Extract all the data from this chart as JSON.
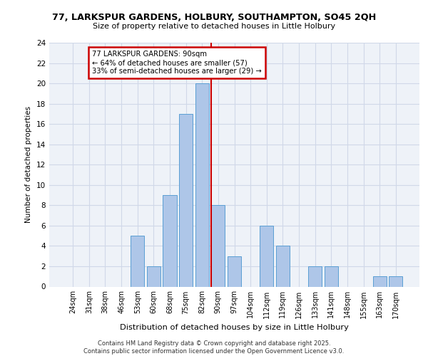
{
  "title1": "77, LARKSPUR GARDENS, HOLBURY, SOUTHAMPTON, SO45 2QH",
  "title2": "Size of property relative to detached houses in Little Holbury",
  "xlabel": "Distribution of detached houses by size in Little Holbury",
  "ylabel": "Number of detached properties",
  "categories": [
    "24sqm",
    "31sqm",
    "38sqm",
    "46sqm",
    "53sqm",
    "60sqm",
    "68sqm",
    "75sqm",
    "82sqm",
    "90sqm",
    "97sqm",
    "104sqm",
    "112sqm",
    "119sqm",
    "126sqm",
    "133sqm",
    "141sqm",
    "148sqm",
    "155sqm",
    "163sqm",
    "170sqm"
  ],
  "values": [
    0,
    0,
    0,
    0,
    5,
    2,
    9,
    17,
    20,
    8,
    3,
    0,
    6,
    4,
    0,
    2,
    2,
    0,
    0,
    1,
    1
  ],
  "bar_color": "#aec6e8",
  "bar_edge_color": "#5a9fd4",
  "highlight_index": 9,
  "highlight_line_color": "#cc0000",
  "annotation_box_color": "#cc0000",
  "annotation_text": "77 LARKSPUR GARDENS: 90sqm\n← 64% of detached houses are smaller (57)\n33% of semi-detached houses are larger (29) →",
  "ylim": [
    0,
    24
  ],
  "yticks": [
    0,
    2,
    4,
    6,
    8,
    10,
    12,
    14,
    16,
    18,
    20,
    22,
    24
  ],
  "grid_color": "#d0d8e8",
  "bg_color": "#eef2f8",
  "footer": "Contains HM Land Registry data © Crown copyright and database right 2025.\nContains public sector information licensed under the Open Government Licence v3.0."
}
